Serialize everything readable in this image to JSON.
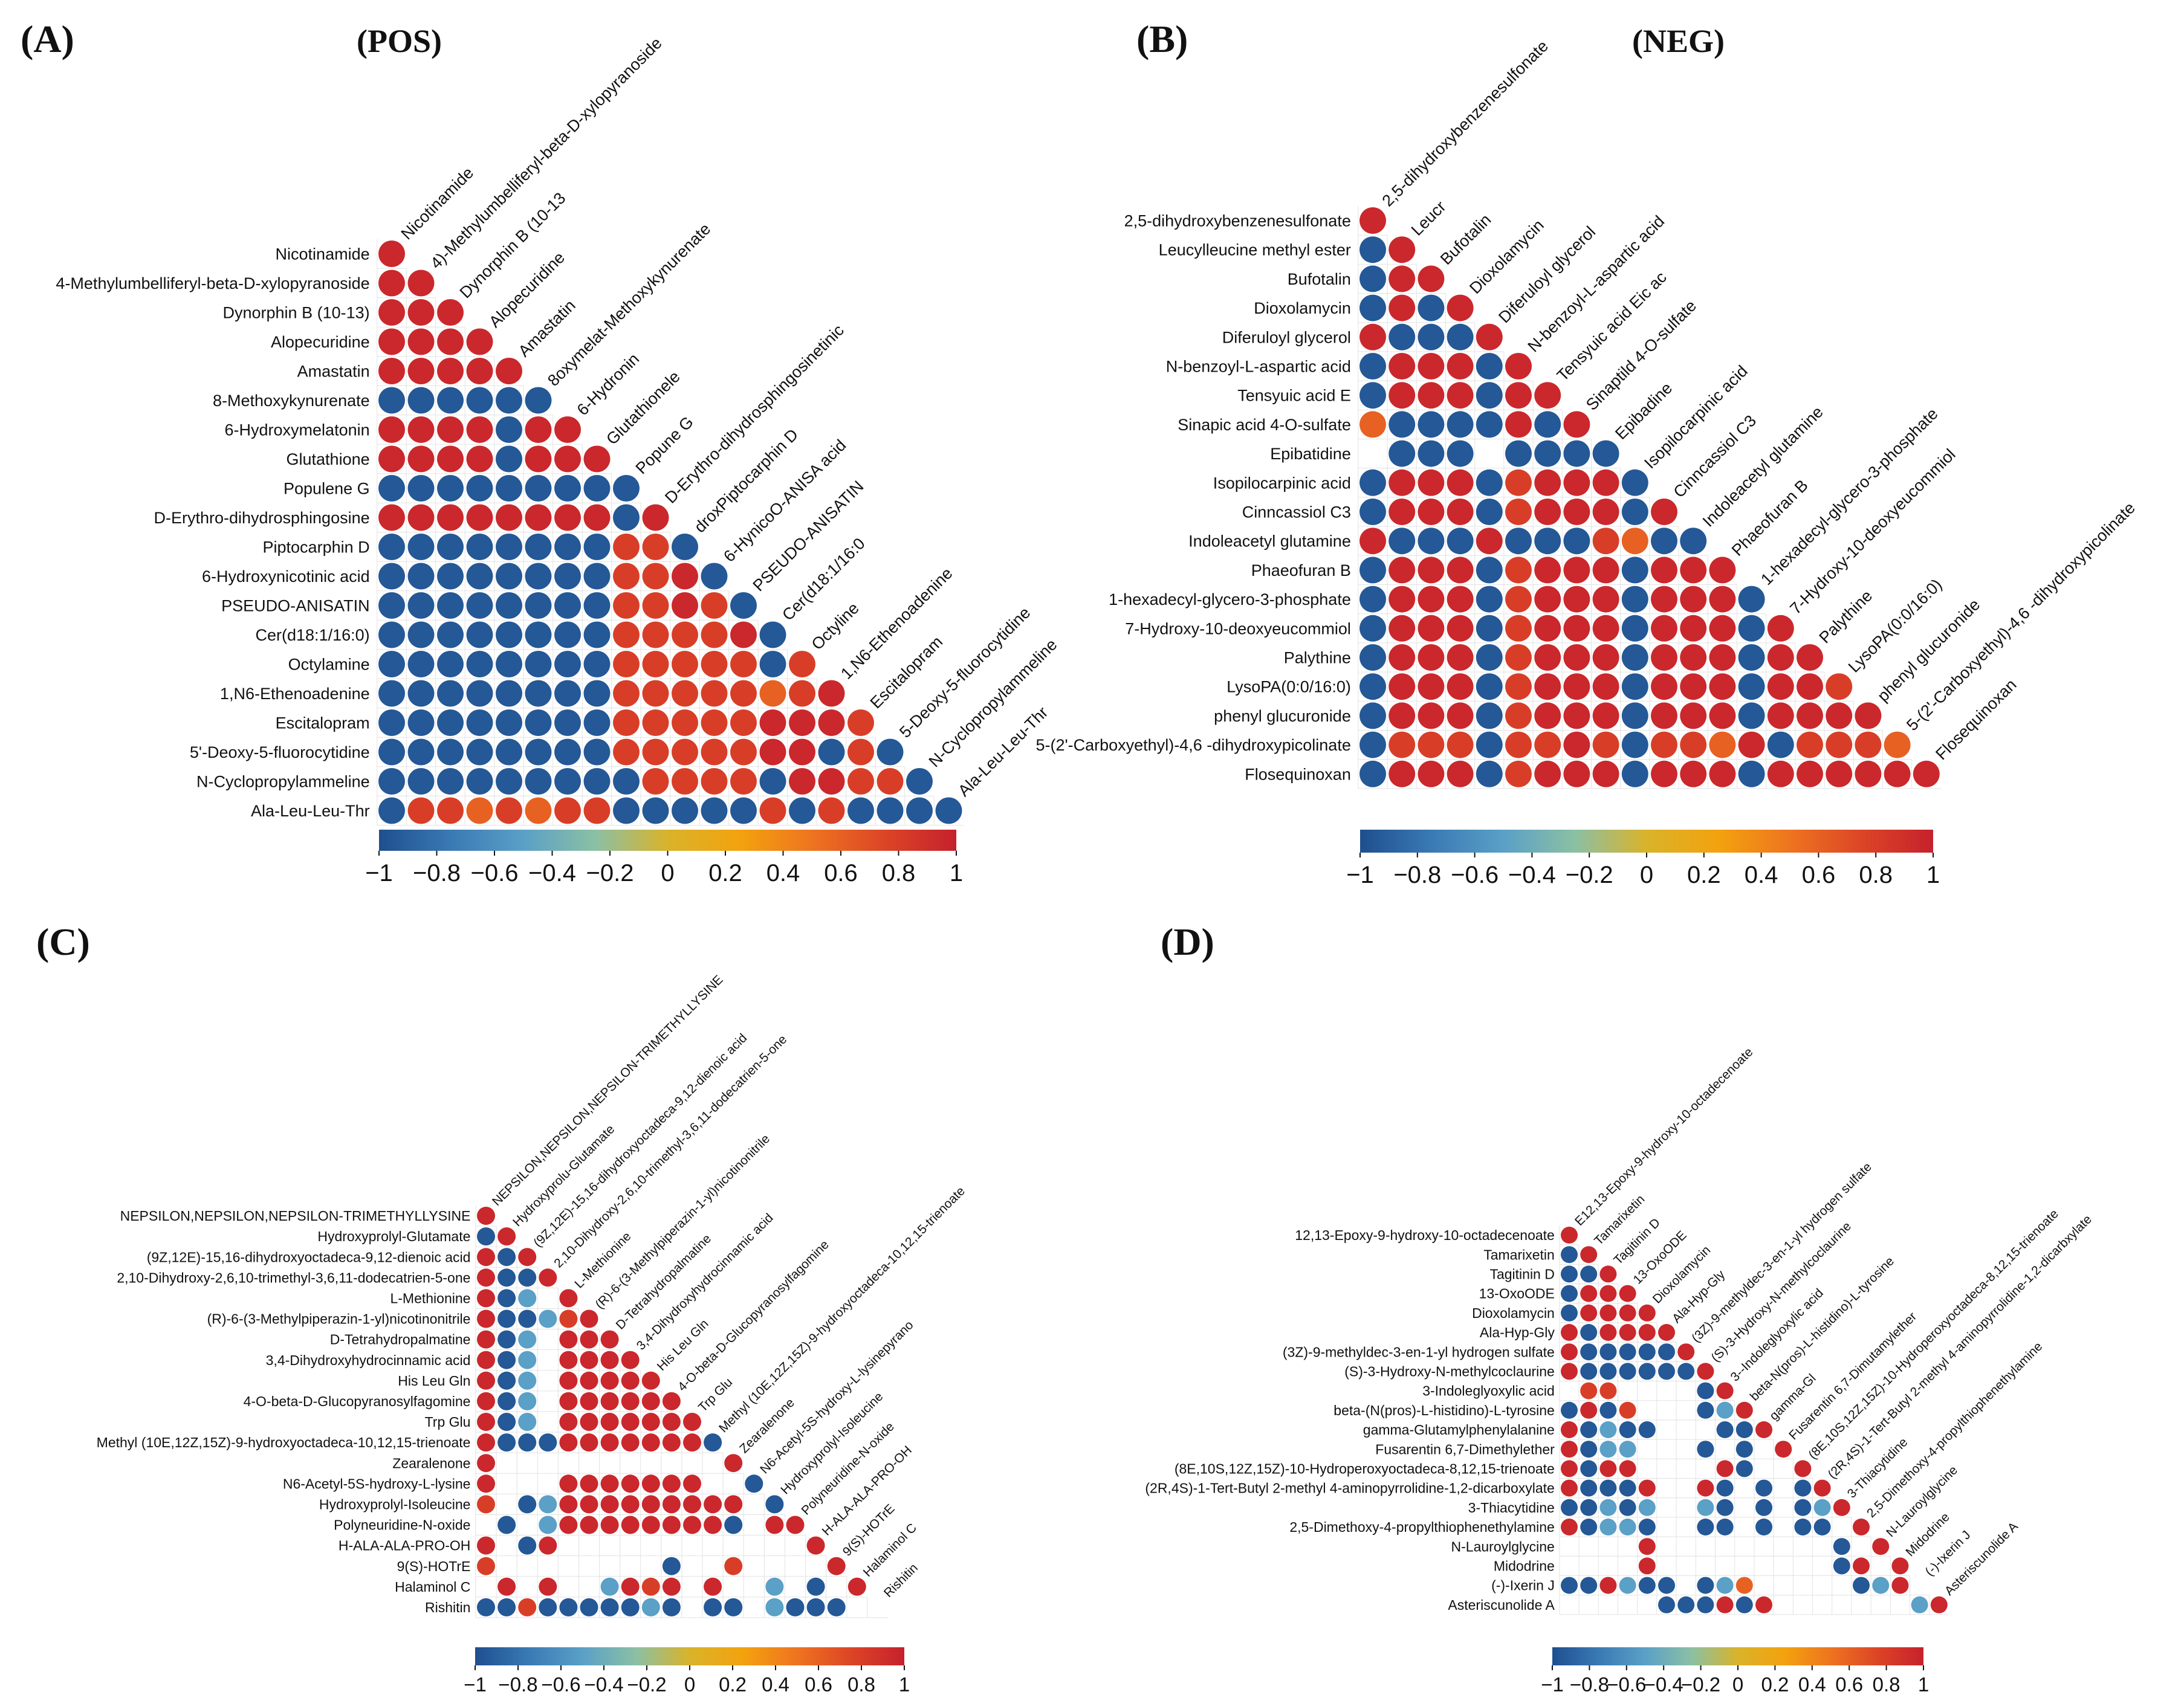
{
  "figure": {
    "description_free": true,
    "colorscale": {
      "ticks": [
        "−1",
        "−0.8",
        "−0.6",
        "−0.4",
        "−0.2",
        "0",
        "0.2",
        "0.4",
        "0.6",
        "0.8",
        "1"
      ],
      "stops": [
        "#1e4f8e",
        "#3a7ab4",
        "#5aa0c7",
        "#8bc0a4",
        "#d9b32a",
        "#f3a20e",
        "#ee7420",
        "#dc4526",
        "#c6212d"
      ]
    }
  },
  "chart_data": [
    {
      "type": "heatmap",
      "panel": "(A)",
      "title": "(POS)",
      "labels": [
        "Nicotinamide",
        "4-Methylumbelliferyl-beta-D-xylopyranoside",
        "Dynorphin B (10-13)",
        "Alopecuridine",
        "Amastatin",
        "8-Methoxykynurenate",
        "6-Hydroxymelatonin",
        "Glutathione",
        "Populene G",
        "D-Erythro-dihydrosphingosine",
        "Piptocarphin D",
        "6-Hydroxynicotinic acid",
        "PSEUDO-ANISATIN",
        "Cer(d18:1/16:0)",
        "Octylamine",
        "1,N6-Ethenoadenine",
        "Escitalopram",
        "5'-Deoxy-5-fluorocytidine",
        "N-Cyclopropylammeline",
        "Ala-Leu-Leu-Thr"
      ],
      "column_labels": [
        "Nicotinamide",
        "4)-Methylumbelliferyl-beta-D-xylopyranoside",
        "Dynorphin B (10-13",
        "Alopecuridine",
        "Amastatin",
        "8oxymelat-Methoxykynurenate",
        "6-Hydronin",
        "Glutathionele",
        "Popune G",
        "D-Erythro-dihydrosphingosinetinic",
        "droxPiptocarphin D",
        "6-HynicoO-ANISA acid",
        "PSEUDO-ANISATIN",
        "Cer(d18:1/16:0",
        "Octyline",
        "1,N6-Ethenoadenine",
        "Escitalopram",
        "5-Deoxy-5-fluorocytidine",
        "N-Cyclopropylammeline",
        "Ala-Leu-Leu-Thr"
      ],
      "rows": [
        "1",
        "11",
        "111",
        "1111",
        "11111",
        "------1",
        "1111-11",
        "1111-111",
        "---------1",
        "11111111-11",
        "--------22-1",
        "--------221-1",
        "--------2212-1",
        "--------22221-1",
        "--------22222-22",
        "--------222223211",
        "--------222221112-",
        "--------2222211-2-1",
        "---------2222-1122-1",
        "-2232322-----2-2----"
      ],
      "value_key": {
        "1": 0.95,
        "2": 0.8,
        "3": 0.6,
        "-": -0.95,
        ".": -0.5,
        "0": null
      }
    },
    {
      "type": "heatmap",
      "panel": "(B)",
      "title": "(NEG)",
      "labels": [
        "2,5-dihydroxybenzenesulfonate",
        "Leucylleucine methyl ester",
        "Bufotalin",
        "Dioxolamycin",
        "Diferuloyl glycerol",
        "N-benzoyl-L-aspartic acid",
        "Tensyuic acid E",
        "Sinapic acid 4-O-sulfate",
        "Epibatidine",
        "Isopilocarpinic acid",
        "Cinncassiol C3",
        "Indoleacetyl glutamine",
        "Phaeofuran B",
        "1-hexadecyl-glycero-3-phosphate",
        "7-Hydroxy-10-deoxyeucommiol",
        "Palythine",
        "LysoPA(0:0/16:0)",
        "phenyl glucuronide",
        "5-(2'-Carboxyethyl)-4,6 -dihydroxypicolinate",
        "Flosequinoxan"
      ],
      "column_labels": [
        "2,5-dihydroxybenzenesulfonate",
        "Leucr",
        "Bufotalin",
        "Dioxolamycin",
        "Diferuloyl glycerol",
        "N-benzoyl-L-aspartic acid",
        "Tensyuic acid Eic ac",
        "Sinaptild 4-O-sulfate",
        "Epibadine",
        "Isopilocarpinic acid",
        "Cinncassiol C3",
        "Indoleacetyl glutamine",
        "Phaeofuran B",
        "1-hexadecyl-glycero-3-phosphate",
        "7-Hydroxy-10-deoxyeucommiol",
        "Palythine",
        "LysoPA(0:0/16:0)",
        "phenyl glucuronide",
        "5-(2'-Carboxyethyl)-4,6 -dihydroxypicolinate",
        "Flosequinoxan"
      ],
      "rows": [
        "1",
        "-1",
        "-11",
        "-1-1",
        "1---1",
        "-111-1",
        "-111-11",
        "3----1-1",
        "0---0----1",
        "-111-2111-1",
        "-111-2111-11",
        "1---1---23--1",
        "-111-2111-111-1",
        "-111-2111-111-11",
        "-111-2111-111-111",
        "-111-2111-111-1111",
        "-111-2111-111-11221",
        "-111-2111-111-111111",
        "-222-2212-2231-22231",
        "-111-2111-111-111111"
      ],
      "value_key": {
        "1": 0.95,
        "2": 0.8,
        "3": 0.6,
        "-": -0.95,
        ".": -0.5,
        "0": null
      }
    },
    {
      "type": "heatmap",
      "panel": "(C)",
      "title": "",
      "labels": [
        "NEPSILON,NEPSILON,NEPSILON-TRIMETHYLLYSINE",
        "Hydroxyprolyl-Glutamate",
        "(9Z,12E)-15,16-dihydroxyoctadeca-9,12-dienoic acid",
        "2,10-Dihydroxy-2,6,10-trimethyl-3,6,11-dodecatrien-5-one",
        "L-Methionine",
        "(R)-6-(3-Methylpiperazin-1-yl)nicotinonitrile",
        "D-Tetrahydropalmatine",
        "3,4-Dihydroxyhydrocinnamic acid",
        "His Leu Gln",
        "4-O-beta-D-Glucopyranosylfagomine",
        "Trp Glu",
        "Methyl (10E,12Z,15Z)-9-hydroxyoctadeca-10,12,15-trienoate",
        "Zearalenone",
        "N6-Acetyl-5S-hydroxy-L-lysine",
        "Hydroxyprolyl-Isoleucine",
        "Polyneuridine-N-oxide",
        "H-ALA-ALA-PRO-OH",
        "9(S)-HOTrE",
        "Halaminol C",
        "Rishitin"
      ],
      "column_labels": [
        "NEPSILON,NEPSILON,NEPSILON-TRIMETHYLLYSINE",
        "Hydroxyprolu-Glutamate",
        "(9Z,12E)-15,16-dihydroxyoctadeca-9,12-dienoic acid",
        "2,10-Dihydroxy-2,6,10-trimethyl-3,6,11-dodecatrien-5-one",
        "L-Methionine",
        "(R)-6-(3-Methylpiperazin-1-yl)nicotinonitrile",
        "D-Tetrahydropalmatine",
        "3,4-Dihydroxyhydrocinnamic acid",
        "His Leu Gln",
        "4-O-beta-D-Glucopyranosylfagomine",
        "Trp Glu",
        "Methyl (10E,12Z,15Z)-9-hydroxyoctadeca-10,12,15-trienoate",
        "Zearalenone",
        "N6-Acetyl-5S-hydroxy-L-lysinepyrano",
        "Hydroxyprolyl-Isoleucine",
        "Polyneuridine-N-oxide",
        "H-ALA-ALA-PRO-OH",
        "9(S)-HOTrE",
        "Halaminol C",
        "Rishitin"
      ],
      "rows": [
        "1",
        "-1",
        "1-1",
        "1--1",
        "1-.01",
        "1--.21",
        "1-.0111",
        "1-.01111",
        "1-.011111",
        "1-.0111111",
        "1-.01111111",
        "1---1111111-",
        "1000000000001",
        "1000111111100-1",
        "20-.1111111110-1",
        "0-0.11111111-0111",
        "10-10000000000001",
        "200000000-002000011",
        "010100.1210100.0-011",
        "--2-----.-0--0.---00"
      ],
      "value_key": {
        "1": 0.95,
        "2": 0.8,
        "3": 0.6,
        "-": -0.95,
        ".": -0.5,
        "0": null
      }
    },
    {
      "type": "heatmap",
      "panel": "(D)",
      "title": "",
      "labels": [
        "12,13-Epoxy-9-hydroxy-10-octadecenoate",
        "Tamarixetin",
        "Tagitinin D",
        "13-OxoODE",
        "Dioxolamycin",
        "Ala-Hyp-Gly",
        "(3Z)-9-methyldec-3-en-1-yl hydrogen sulfate",
        "(S)-3-Hydroxy-N-methylcoclaurine",
        "3-Indoleglyoxylic acid",
        "beta-(N(pros)-L-histidino)-L-tyrosine",
        "gamma-Glutamylphenylalanine",
        "Fusarentin 6,7-Dimethylether",
        "(8E,10S,12Z,15Z)-10-Hydroperoxyoctadeca-8,12,15-trienoate",
        "(2R,4S)-1-Tert-Butyl 2-methyl 4-aminopyrrolidine-1,2-dicarboxylate",
        "3-Thiacytidine",
        "2,5-Dimethoxy-4-propylthiophenethylamine",
        "N-Lauroylglycine",
        "Midodrine",
        "(-)-Ixerin J",
        "Asteriscunolide A"
      ],
      "column_labels": [
        "E12,13-Epoxy-9-hydroxy-10-octadecenoate",
        "Tamarixetin",
        "Tagitinin D",
        "13-OxoODE",
        "Dioxolamycin",
        "Ala-Hyp-Gly",
        "(3Z)-9-methyldec-3-en-1-yl hydrogen sulfate",
        "(S)-3-Hydroxy-N-methylcoclaurine",
        "3--Indoleglyoxylic acid",
        "beta-N(pros)-L-histidino)-L-tyrosine",
        "gamma-Gl",
        "Fusarentin 6,7-Dimutamylether",
        "(8E,10S,12Z,15Z)-10-Hydroperoxyoctadeca-8,12,15-trienoate",
        "(2R,4S)-1-Tert-Butyl 2-methyl 4-aminopyrrolidine-1,2-dicarbxylate",
        "3-Thiacytidine",
        "2,5-Dimethoxy-4-propylthiophenethylamine",
        "N-Lauroylglycine",
        "Midodrine",
        "(-)-Ixerin J",
        "Asteriscunolide A"
      ],
      "rows": [
        "1",
        "-1",
        "--1",
        "-111",
        "-1111",
        "1-1111",
        "1-----1",
        "1------1",
        "0220000-1",
        "-1-2000-.1",
        "1-.--000--1",
        "1-..000-0-01",
        "1-1100001-001",
        "1---1001-0-0-1",
        "--.-.00.-0-0-.1",
        "1-..-00--0-0--01",
        "00001000000000-01",
        "00001000000000-101",
        "--1.--0-.300000-.1",
        "00000---1-10000000.1"
      ],
      "value_key": {
        "1": 0.95,
        "2": 0.8,
        "3": 0.6,
        "-": -0.95,
        ".": -0.5,
        "0": null
      }
    }
  ]
}
